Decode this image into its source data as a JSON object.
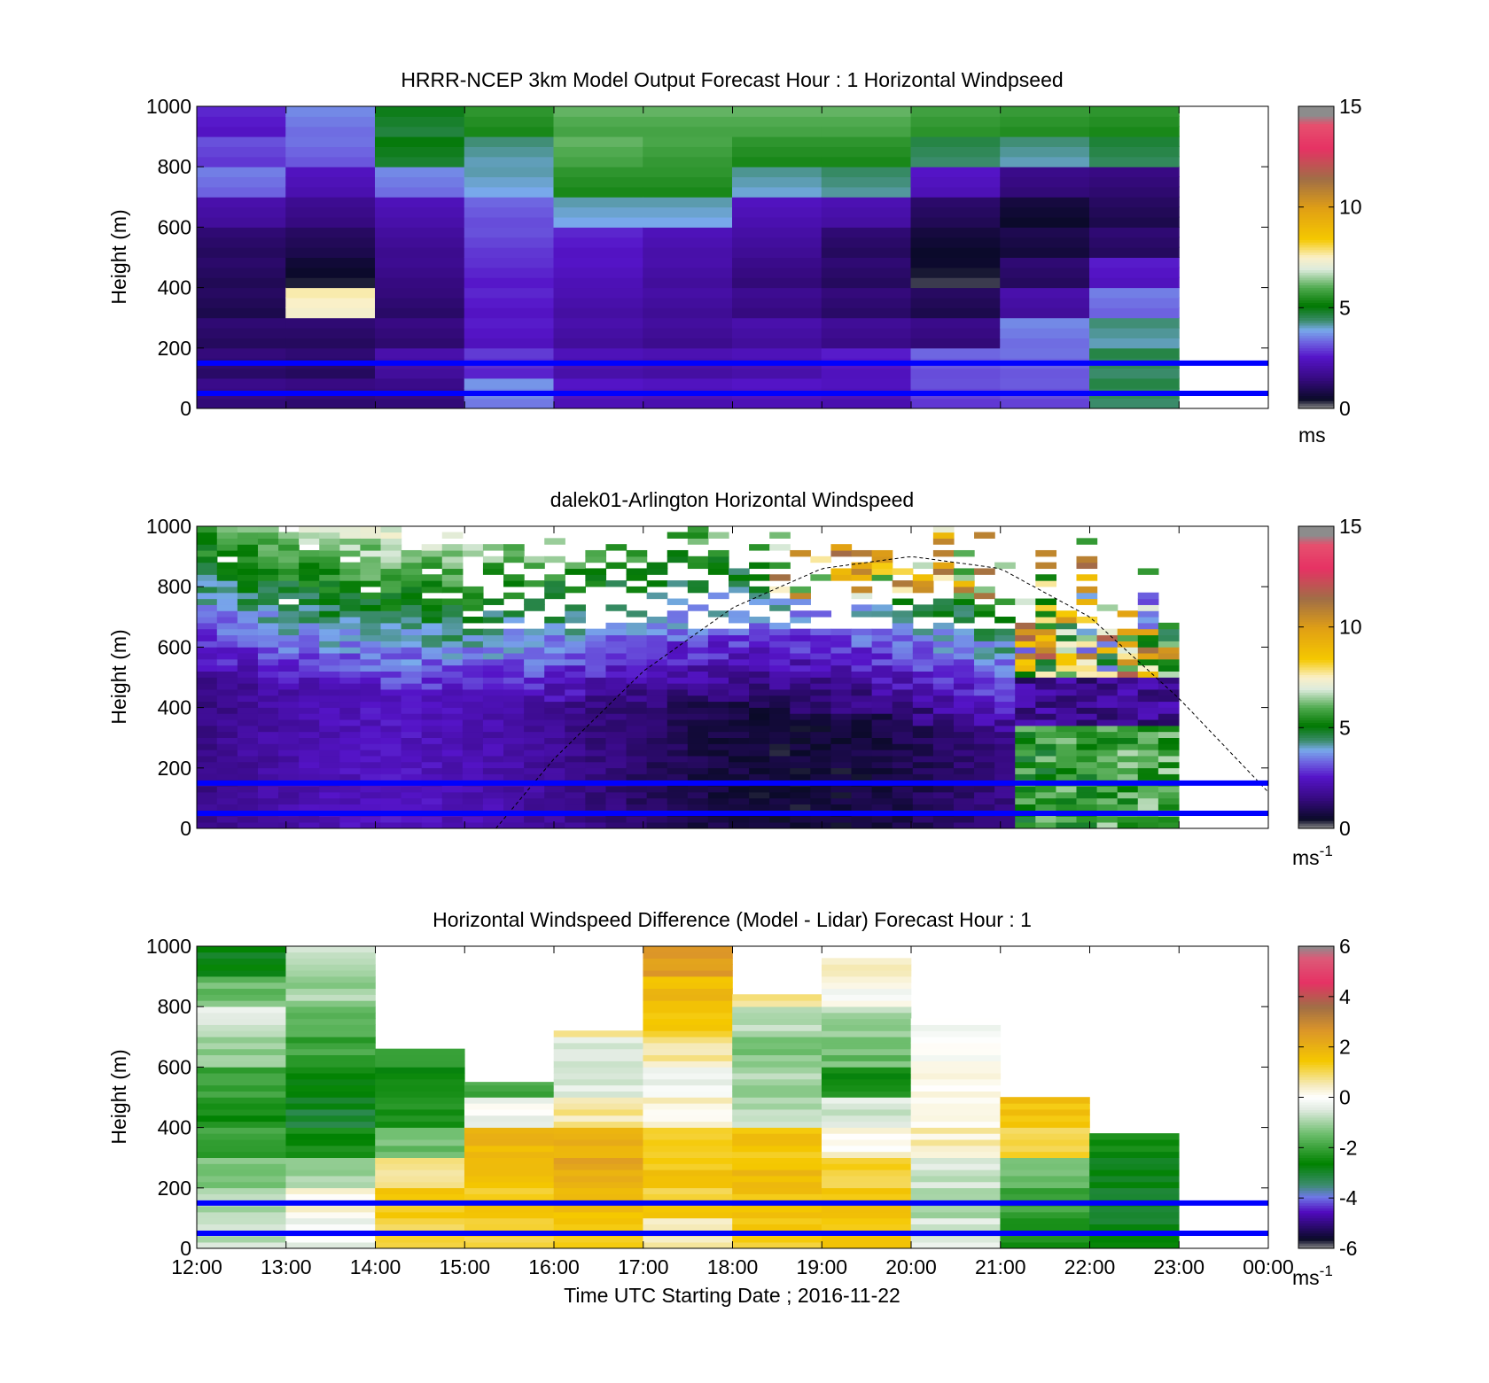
{
  "figure": {
    "xlabel": "Time UTC  Starting Date ; 2016-11-22",
    "x_ticks": [
      "12:00",
      "13:00",
      "14:00",
      "15:00",
      "16:00",
      "17:00",
      "18:00",
      "19:00",
      "20:00",
      "21:00",
      "22:00",
      "23:00",
      "00:00"
    ],
    "reference_heights_m": [
      50,
      150
    ],
    "reference_line_color": "#0000ff"
  },
  "chart_data": [
    {
      "type": "heatmap",
      "title": "HRRR-NCEP 3km Model Output   Forecast Hour : 1 Horizontal Windpseed",
      "ylabel": "Height (m)",
      "ylim": [
        0,
        1000
      ],
      "y_ticks": [
        "0",
        "200",
        "400",
        "600",
        "800",
        "1000"
      ],
      "x_range_hours": [
        0,
        12
      ],
      "colorbar": {
        "ticks": [
          "0",
          "5",
          "10",
          "15"
        ],
        "clim": [
          0,
          15
        ],
        "unit": "ms",
        "unit_sup": ""
      },
      "grid": false,
      "notes": "11 hourly columns (12:00-23:00); values in m/s, row i covers height (i*100)-(i*100+100) m, bottom row first",
      "columns": [
        [
          1.5,
          1.3,
          1.2,
          1.0,
          1.1,
          1.2,
          2.0,
          3.4,
          3.0,
          2.6
        ],
        [
          1.4,
          1.2,
          1.2,
          7.5,
          0.5,
          1.0,
          1.6,
          2.3,
          3.3,
          3.5
        ],
        [
          1.5,
          2.0,
          1.4,
          1.3,
          1.6,
          1.8,
          2.2,
          3.5,
          4.9,
          4.8
        ],
        [
          3.6,
          2.8,
          2.5,
          2.6,
          2.7,
          3.0,
          3.2,
          4.0,
          4.2,
          5.5
        ],
        [
          2.4,
          2.2,
          2.0,
          2.1,
          2.4,
          2.6,
          4.0,
          5.5,
          6.0,
          6.0
        ],
        [
          2.3,
          2.1,
          1.8,
          1.9,
          2.0,
          2.2,
          4.0,
          5.5,
          5.8,
          6.0
        ],
        [
          2.4,
          2.2,
          2.0,
          1.6,
          1.5,
          1.9,
          2.3,
          4.1,
          5.5,
          6.0
        ],
        [
          2.3,
          2.5,
          1.7,
          1.3,
          1.2,
          1.2,
          2.1,
          4.3,
          5.5,
          6.0
        ],
        [
          3.0,
          3.2,
          1.5,
          1.0,
          0.4,
          0.6,
          1.1,
          2.4,
          4.5,
          5.7
        ],
        [
          3.1,
          3.3,
          3.5,
          2.0,
          1.2,
          0.8,
          0.6,
          1.5,
          4.2,
          5.6
        ],
        [
          4.5,
          4.5,
          4.2,
          3.4,
          2.5,
          1.2,
          1.0,
          1.4,
          4.6,
          5.5
        ]
      ]
    },
    {
      "type": "heatmap",
      "title": "dalek01-Arlington  Horizontal Windspeed",
      "ylabel": "Height (m)",
      "ylim": [
        0,
        1000
      ],
      "y_ticks": [
        "0",
        "200",
        "400",
        "600",
        "800",
        "1000"
      ],
      "x_range_hours": [
        0,
        12
      ],
      "colorbar": {
        "ticks": [
          "0",
          "5",
          "10",
          "15"
        ],
        "clim": [
          0,
          15
        ],
        "unit": "ms",
        "unit_sup": "-1"
      },
      "grid": false,
      "notes": "lidar profiles (~4 per hour, 12:00-23:00) with sparse data aloft; dashed curve is a boundary-layer height estimate (m)",
      "profiles": 48,
      "boundary_layer_curve": {
        "x_hours": [
          3.35,
          4.0,
          5.0,
          6.0,
          7.0,
          8.0,
          9.0,
          10.0,
          11.0,
          12.0
        ],
        "y_m": [
          0,
          230,
          520,
          730,
          860,
          900,
          860,
          700,
          430,
          120
        ]
      }
    },
    {
      "type": "heatmap",
      "title": "Horizontal Windspeed Difference (Model - Lidar) Forecast Hour : 1",
      "ylabel": "Height (m)",
      "ylim": [
        0,
        1000
      ],
      "y_ticks": [
        "0",
        "200",
        "400",
        "600",
        "800",
        "1000"
      ],
      "x_range_hours": [
        0,
        12
      ],
      "colorbar": {
        "ticks": [
          "-6",
          "-4",
          "-2",
          "0",
          "2",
          "4",
          "6"
        ],
        "clim": [
          -6,
          6
        ],
        "unit": "ms",
        "unit_sup": "-1"
      },
      "grid": false,
      "notes": "11 hourly columns (12:00-23:00); top_m = highest valid height, values = approx. bulk difference (m/s) in 100 m layers",
      "columns": [
        {
          "top_m": 1000,
          "values": [
            -0.8,
            -0.9,
            -1.2,
            -2.0,
            -2.5,
            -2.0,
            -1.2,
            -0.5,
            -1.5,
            -2.8
          ]
        },
        {
          "top_m": 1000,
          "values": [
            -0.3,
            0.3,
            -1.0,
            -2.5,
            -3.0,
            -2.6,
            -2.0,
            -1.5,
            -1.0,
            -0.8
          ]
        },
        {
          "top_m": 660,
          "values": [
            1.2,
            1.3,
            0.8,
            -1.5,
            -2.4,
            -2.6,
            -2.0
          ]
        },
        {
          "top_m": 550,
          "values": [
            1.3,
            1.4,
            1.7,
            1.8,
            -0.2,
            -1.8
          ]
        },
        {
          "top_m": 720,
          "values": [
            1.4,
            1.6,
            2.2,
            2.0,
            0.6,
            -0.5,
            -0.4,
            0.5
          ]
        },
        {
          "top_m": 1000,
          "values": [
            0.4,
            1.3,
            1.5,
            1.2,
            0.3,
            -0.2,
            0.6,
            1.3,
            1.7,
            2.5
          ]
        },
        {
          "top_m": 840,
          "values": [
            1.4,
            1.6,
            1.7,
            1.5,
            -0.8,
            -1.0,
            -1.3,
            -0.8,
            0.8
          ]
        },
        {
          "top_m": 960,
          "values": [
            1.3,
            1.5,
            1.2,
            0.2,
            -0.6,
            -2.5,
            -1.5,
            -1.0,
            0.0,
            0.5
          ]
        },
        {
          "top_m": 760,
          "values": [
            -0.5,
            -0.8,
            -0.6,
            0.4,
            0.0
          ]
        },
        {
          "top_m": 500,
          "values": [
            -2.3,
            -2.0,
            -1.6,
            1.2,
            1.5
          ]
        },
        {
          "top_m": 380,
          "values": [
            -2.8,
            -2.8,
            -2.8,
            -2.6
          ]
        }
      ]
    }
  ]
}
